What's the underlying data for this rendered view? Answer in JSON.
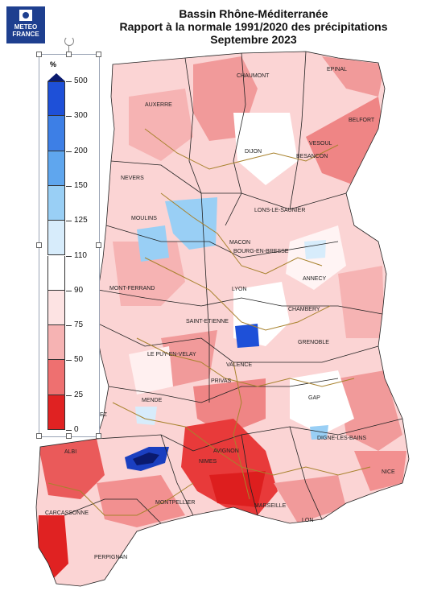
{
  "logo": {
    "line1": "METEO",
    "line2": "FRANCE"
  },
  "title": {
    "line1": "Bassin Rhône-Méditerranée",
    "line2": "Rapport à la normale 1991/2020 des précipitations",
    "line3": "Septembre 2023"
  },
  "legend": {
    "unit": "%",
    "classes": [
      {
        "label": "500",
        "color": "#0a1a6e"
      },
      {
        "label": "300",
        "color": "#1e50d8"
      },
      {
        "label": "200",
        "color": "#3d7fe6"
      },
      {
        "label": "150",
        "color": "#5fa6ee"
      },
      {
        "label": "125",
        "color": "#99cff5"
      },
      {
        "label": "110",
        "color": "#d7ecfb"
      },
      {
        "label": "90",
        "color": "#ffffff"
      },
      {
        "label": "75",
        "color": "#fde3e3"
      },
      {
        "label": "50",
        "color": "#f6b3b3"
      },
      {
        "label": "25",
        "color": "#ee7070"
      },
      {
        "label": "0",
        "color": "#e02222"
      }
    ]
  },
  "cities": [
    {
      "name": "Chaumont"
    },
    {
      "name": "Epinal"
    },
    {
      "name": "Auxerre"
    },
    {
      "name": "Vesoul"
    },
    {
      "name": "Belfort"
    },
    {
      "name": "Dijon"
    },
    {
      "name": "Besancon"
    },
    {
      "name": "Nevers"
    },
    {
      "name": "Lons-le-Saunier"
    },
    {
      "name": "Moulins"
    },
    {
      "name": "Macon"
    },
    {
      "name": "Bourg-en-Bresse"
    },
    {
      "name": "mont-Ferrand"
    },
    {
      "name": "Lyon"
    },
    {
      "name": "Annecy"
    },
    {
      "name": "Chambery"
    },
    {
      "name": "Saint-Etienne"
    },
    {
      "name": "Grenoble"
    },
    {
      "name": "Le Puy-en-Velay"
    },
    {
      "name": "Valence"
    },
    {
      "name": "Privas"
    },
    {
      "name": "Gap"
    },
    {
      "name": "Mende"
    },
    {
      "name": "Digne-les-Bains"
    },
    {
      "name": "ez"
    },
    {
      "name": "Albi"
    },
    {
      "name": "Avignon"
    },
    {
      "name": "Nimes"
    },
    {
      "name": "Nice"
    },
    {
      "name": "Montpellier"
    },
    {
      "name": "Marseille"
    },
    {
      "name": "Carcassonne"
    },
    {
      "name": "Lon"
    },
    {
      "name": "Perpignan"
    }
  ]
}
